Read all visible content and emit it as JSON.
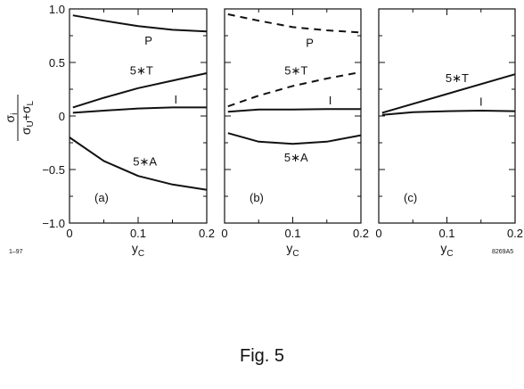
{
  "figure": {
    "caption": "Fig. 5",
    "corner_left": "1–97",
    "corner_right": "8269A5",
    "ylabel_num": "σ",
    "ylabel_num_sub": "i",
    "ylabel_den": "σ",
    "ylabel_den_sub1": "U",
    "ylabel_den_mid": "+σ",
    "ylabel_den_sub2": "L",
    "xlabel_main": "y",
    "xlabel_sub": "C"
  },
  "chart_data": [
    {
      "type": "line",
      "panel_label": "(a)",
      "xlim": [
        0,
        0.2
      ],
      "ylim": [
        -1.0,
        1.0
      ],
      "xticks": [
        "0",
        "0.1",
        "0.2"
      ],
      "yticks": [
        "−1.0",
        "−0.5",
        "0",
        "0.5",
        "1.0"
      ],
      "grid": false,
      "series": [
        {
          "name": "P",
          "style": "solid",
          "x": [
            0.005,
            0.05,
            0.1,
            0.15,
            0.2
          ],
          "values": [
            0.94,
            0.89,
            0.84,
            0.805,
            0.79
          ],
          "label_x": 0.115,
          "label_y": 0.7
        },
        {
          "name": "5∗T",
          "style": "solid",
          "x": [
            0.005,
            0.05,
            0.1,
            0.15,
            0.2
          ],
          "values": [
            0.08,
            0.17,
            0.26,
            0.33,
            0.4
          ],
          "label_x": 0.105,
          "label_y": 0.42
        },
        {
          "name": "I",
          "style": "solid",
          "x": [
            0.005,
            0.05,
            0.1,
            0.15,
            0.2
          ],
          "values": [
            0.03,
            0.05,
            0.07,
            0.08,
            0.08
          ],
          "label_x": 0.155,
          "label_y": 0.15
        },
        {
          "name": "5∗A",
          "style": "solid",
          "x": [
            0,
            0.05,
            0.1,
            0.15,
            0.2
          ],
          "values": [
            -0.2,
            -0.42,
            -0.56,
            -0.64,
            -0.69
          ],
          "label_x": 0.11,
          "label_y": -0.43
        }
      ]
    },
    {
      "type": "line",
      "panel_label": "(b)",
      "xlim": [
        0,
        0.2
      ],
      "ylim": [
        -1.0,
        1.0
      ],
      "xticks": [
        "0",
        "0.1",
        "0.2"
      ],
      "grid": false,
      "series": [
        {
          "name": "P",
          "style": "dashed",
          "x": [
            0.005,
            0.05,
            0.1,
            0.15,
            0.2
          ],
          "values": [
            0.95,
            0.89,
            0.83,
            0.8,
            0.78
          ],
          "label_x": 0.125,
          "label_y": 0.68
        },
        {
          "name": "5∗T",
          "style": "dashed",
          "x": [
            0.005,
            0.05,
            0.1,
            0.15,
            0.2
          ],
          "values": [
            0.09,
            0.19,
            0.28,
            0.35,
            0.41
          ],
          "label_x": 0.105,
          "label_y": 0.42
        },
        {
          "name": "I",
          "style": "solid",
          "x": [
            0.005,
            0.05,
            0.1,
            0.15,
            0.2
          ],
          "values": [
            0.04,
            0.06,
            0.06,
            0.065,
            0.065
          ],
          "label_x": 0.155,
          "label_y": 0.14
        },
        {
          "name": "5∗A",
          "style": "solid",
          "x": [
            0.005,
            0.05,
            0.1,
            0.15,
            0.2
          ],
          "values": [
            -0.16,
            -0.24,
            -0.26,
            -0.24,
            -0.18
          ],
          "label_x": 0.105,
          "label_y": -0.39
        }
      ]
    },
    {
      "type": "line",
      "panel_label": "(c)",
      "xlim": [
        0,
        0.2
      ],
      "ylim": [
        -1.0,
        1.0
      ],
      "xticks": [
        "0",
        "0.1",
        "0.2"
      ],
      "grid": false,
      "series": [
        {
          "name": "5∗T",
          "style": "solid",
          "x": [
            0.005,
            0.2
          ],
          "values": [
            0.03,
            0.39
          ],
          "label_x": 0.115,
          "label_y": 0.35
        },
        {
          "name": "I",
          "style": "solid",
          "x": [
            0.005,
            0.05,
            0.1,
            0.15,
            0.2
          ],
          "values": [
            0.01,
            0.035,
            0.045,
            0.05,
            0.045
          ],
          "label_x": 0.15,
          "label_y": 0.13
        }
      ]
    }
  ]
}
